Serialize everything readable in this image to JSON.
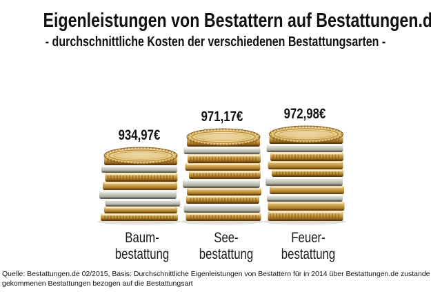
{
  "header": {
    "title": "Eigenleistungen von Bestattern auf Bestattungen.de",
    "subtitle": "- durchschnittliche Kosten der verschiedenen Bestattungsarten -"
  },
  "chart_data": {
    "type": "bar",
    "subtype": "pictorial-infographic-coin-stacks",
    "title": "Eigenleistungen von Bestattern auf Bestattungen.de",
    "subtitle": "- durchschnittliche Kosten der verschiedenen Bestattungsarten -",
    "categories": [
      "Baumbestattung",
      "Seebestattung",
      "Feuerbestattung"
    ],
    "category_lines": [
      [
        "Baum-",
        "bestattung"
      ],
      [
        "See-",
        "bestattung"
      ],
      [
        "Feuer-",
        "bestattung"
      ]
    ],
    "values": [
      934.97,
      971.17,
      972.98
    ],
    "value_labels": [
      "934,97€",
      "971,17€",
      "972,98€"
    ],
    "currency": "EUR",
    "axes": "none",
    "legend": "none",
    "source": "Quelle: Bestattungen.de 02/2015, Basis: Durchschnittliche Eigenleistungen von Bestattern für in 2014 über Bestattungen.de zustande gekommenen Bestattungen bezogen auf die Bestattungsart"
  },
  "footer": {
    "source_line1": "Quelle: Bestattungen.de 02/2015, Basis: Durchschnittliche Eigenleistungen von Bestattern für in 2014 über Bestattungen.de zustande",
    "source_line2": "gekommenen Bestattungen bezogen auf die Bestattungsart"
  },
  "colors": {
    "text": "#111111",
    "background": "#ffffff",
    "coin_gold": "#c99a3c",
    "coin_gold_dark": "#8a5c1b",
    "coin_silver": "#c9c9c0"
  }
}
